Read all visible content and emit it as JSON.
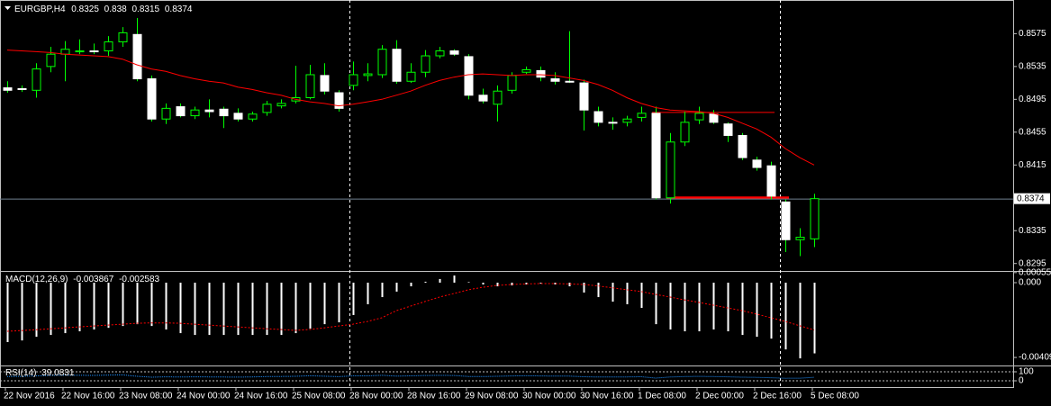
{
  "chart_data": {
    "type": "candlestick",
    "title": "EURGBP,H4",
    "categories": [
      "22 Nov 2016",
      null,
      null,
      null,
      "22 Nov 16:00",
      null,
      null,
      null,
      "23 Nov 08:00",
      null,
      null,
      null,
      "24 Nov 00:00",
      null,
      null,
      null,
      "24 Nov 16:00",
      null,
      null,
      null,
      "25 Nov 08:00",
      null,
      null,
      null,
      "28 Nov 00:00",
      null,
      null,
      null,
      "28 Nov 16:00",
      null,
      null,
      null,
      "29 Nov 08:00",
      null,
      null,
      null,
      "30 Nov 00:00",
      null,
      null,
      null,
      "30 Nov 16:00",
      null,
      null,
      null,
      "1 Dec 08:00",
      null,
      null,
      null,
      "2 Dec 00:00",
      null,
      null,
      null,
      "2 Dec 16:00",
      null,
      null,
      null,
      "5 Dec 08:00"
    ],
    "open": [
      0.8509,
      0.8508,
      0.8506,
      0.8535,
      0.855,
      0.8553,
      0.8554,
      0.8554,
      0.8565,
      0.8574,
      0.852,
      0.8471,
      0.8486,
      0.8475,
      0.8482,
      0.8483,
      0.8478,
      0.8471,
      0.8479,
      0.8487,
      0.8493,
      0.8497,
      0.8524,
      0.8503,
      0.8512,
      0.8524,
      0.8525,
      0.8556,
      0.8517,
      0.8528,
      0.8548,
      0.8554,
      0.8547,
      0.85,
      0.8489,
      0.8506,
      0.8528,
      0.853,
      0.852,
      0.8517,
      0.8515,
      0.848,
      0.8467,
      0.8467,
      0.8473,
      0.8478,
      0.8375,
      0.8443,
      0.847,
      0.8477,
      0.8465,
      0.8451,
      0.8421,
      0.8414,
      0.837,
      0.8324,
      0.8325
    ],
    "high": [
      0.8517,
      0.8512,
      0.8539,
      0.8559,
      0.8566,
      0.8568,
      0.8563,
      0.8572,
      0.8583,
      0.8594,
      0.8524,
      0.849,
      0.849,
      0.8486,
      0.8495,
      0.8486,
      0.8484,
      0.848,
      0.8493,
      0.8495,
      0.8536,
      0.8537,
      0.8539,
      0.8506,
      0.8541,
      0.8539,
      0.8561,
      0.8567,
      0.8539,
      0.8555,
      0.8559,
      0.8556,
      0.855,
      0.8508,
      0.8512,
      0.8528,
      0.8535,
      0.8535,
      0.8528,
      0.8578,
      0.8519,
      0.8486,
      0.8473,
      0.8475,
      0.8486,
      0.8486,
      0.8454,
      0.848,
      0.8486,
      0.8482,
      0.8467,
      0.8454,
      0.8425,
      0.8419,
      0.8373,
      0.8338,
      0.838
    ],
    "low": [
      0.8503,
      0.8504,
      0.8497,
      0.8528,
      0.8517,
      0.855,
      0.855,
      0.8548,
      0.8559,
      0.8517,
      0.8468,
      0.8465,
      0.8473,
      0.8471,
      0.8473,
      0.846,
      0.8468,
      0.8468,
      0.8475,
      0.8484,
      0.849,
      0.8495,
      0.8501,
      0.848,
      0.8506,
      0.8517,
      0.8521,
      0.8514,
      0.8515,
      0.8522,
      0.8545,
      0.8548,
      0.8495,
      0.849,
      0.8468,
      0.8502,
      0.8526,
      0.8517,
      0.8513,
      0.8515,
      0.8457,
      0.8462,
      0.8458,
      0.8462,
      0.8468,
      0.8373,
      0.8368,
      0.8438,
      0.8465,
      0.8465,
      0.8443,
      0.8421,
      0.8408,
      0.8373,
      0.8309,
      0.8304,
      0.8315
    ],
    "close": [
      0.8506,
      0.8507,
      0.8532,
      0.855,
      0.8556,
      0.8554,
      0.8553,
      0.8565,
      0.8576,
      0.852,
      0.8471,
      0.8484,
      0.8475,
      0.8482,
      0.848,
      0.8475,
      0.8471,
      0.8477,
      0.8489,
      0.849,
      0.8497,
      0.8525,
      0.8505,
      0.8484,
      0.8525,
      0.8526,
      0.8556,
      0.8517,
      0.8528,
      0.8548,
      0.8554,
      0.855,
      0.85,
      0.8493,
      0.8505,
      0.8524,
      0.8531,
      0.8522,
      0.8517,
      0.8516,
      0.8482,
      0.8467,
      0.8466,
      0.8471,
      0.8478,
      0.8375,
      0.8443,
      0.8467,
      0.8478,
      0.8467,
      0.8451,
      0.8424,
      0.8412,
      0.8377,
      0.8324,
      0.8327,
      0.8374
    ],
    "bull_color": "#00ff00",
    "bear_color": "#ffffff",
    "wick_color": "#00ff00",
    "ylim": [
      0.8287,
      0.8616
    ],
    "yticks": [
      0.8575,
      0.8535,
      0.8495,
      0.8455,
      0.8415,
      0.8335,
      0.8295
    ],
    "ma": {
      "color": "#ff0000",
      "values": [
        0.8555,
        0.8554,
        0.8553,
        0.8552,
        0.855,
        0.8549,
        0.8548,
        0.8547,
        0.8544,
        0.8537,
        0.8532,
        0.8529,
        0.8524,
        0.852,
        0.8517,
        0.8515,
        0.851,
        0.8507,
        0.8503,
        0.85,
        0.8495,
        0.8492,
        0.849,
        0.8487,
        0.8489,
        0.8492,
        0.8495,
        0.85,
        0.8505,
        0.8512,
        0.8518,
        0.8522,
        0.8525,
        0.8526,
        0.8525,
        0.8524,
        0.8525,
        0.8525,
        0.8524,
        0.8521,
        0.8518,
        0.8513,
        0.8506,
        0.8497,
        0.849,
        0.8485,
        0.8482,
        0.8481,
        0.848,
        0.8478,
        0.8473,
        0.8466,
        0.8459,
        0.8449,
        0.8435,
        0.8424,
        0.8415
      ]
    },
    "levels": [
      0.8479,
      0.8375
    ],
    "level_color": "#ff0000",
    "macd": {
      "title": "MACD(12,26,9)",
      "color": "#ffffff",
      "signal_color": "#ff0000",
      "values": [
        -0.00325,
        -0.00316,
        -0.00296,
        -0.00286,
        -0.00276,
        -0.00266,
        -0.00256,
        -0.00247,
        -0.00237,
        -0.00227,
        -0.00237,
        -0.00256,
        -0.00276,
        -0.00286,
        -0.00286,
        -0.00286,
        -0.00286,
        -0.00286,
        -0.00286,
        -0.00286,
        -0.00276,
        -0.00251,
        -0.00227,
        -0.00217,
        -0.00177,
        -0.00118,
        -0.00079,
        -0.00049,
        -0.0002,
        5e-05,
        0.0002,
        0.00039,
        3e-05,
        -0.0001,
        -0.0002,
        -0.00015,
        -0.0001,
        -5e-05,
        -0.0001,
        -0.0002,
        -0.00054,
        -0.00079,
        -0.00104,
        -0.00118,
        -0.00138,
        -0.00227,
        -0.00256,
        -0.00266,
        -0.00266,
        -0.00256,
        -0.00266,
        -0.00286,
        -0.00296,
        -0.00306,
        -0.00365,
        -0.00414,
        -0.003867
      ],
      "signal": [
        -0.00266,
        -0.00262,
        -0.00257,
        -0.00252,
        -0.00247,
        -0.00242,
        -0.00237,
        -0.00232,
        -0.00227,
        -0.00222,
        -0.0022,
        -0.0022,
        -0.00222,
        -0.00227,
        -0.00232,
        -0.00237,
        -0.00242,
        -0.00247,
        -0.00252,
        -0.00256,
        -0.00261,
        -0.00256,
        -0.00247,
        -0.00237,
        -0.00227,
        -0.00212,
        -0.00192,
        -0.00153,
        -0.00128,
        -0.00103,
        -0.00079,
        -0.00059,
        -0.00039,
        -0.00025,
        -0.00015,
        -0.0001,
        -7e-05,
        -5e-05,
        -5e-05,
        -7e-05,
        -0.0001,
        -0.00018,
        -0.00028,
        -0.00039,
        -0.00049,
        -0.00064,
        -0.00079,
        -0.00094,
        -0.00108,
        -0.00123,
        -0.00138,
        -0.00153,
        -0.00172,
        -0.00192,
        -0.00212,
        -0.00236,
        -0.002583
      ],
      "ylim": [
        -0.00448,
        0.00059
      ],
      "yticks": [
        0.00055,
        {
          "value": 0,
          "label": "0.000"
        },
        -0.00409
      ]
    },
    "rsi": {
      "title": "RSI(14)",
      "color": "#1e90ff",
      "values": [
        48,
        49,
        55,
        60,
        62,
        61,
        60,
        63,
        66,
        50,
        40,
        44,
        42,
        44,
        43,
        42,
        41,
        43,
        47,
        48,
        50,
        56,
        51,
        46,
        55,
        55,
        61,
        52,
        55,
        59,
        60,
        59,
        48,
        47,
        50,
        54,
        56,
        54,
        52,
        52,
        45,
        42,
        42,
        43,
        45,
        30,
        42,
        47,
        49,
        47,
        44,
        40,
        38,
        34,
        28,
        29,
        39.0831
      ],
      "ylim": [
        -70,
        160
      ],
      "yticks": [
        100,
        0
      ]
    }
  }
}
